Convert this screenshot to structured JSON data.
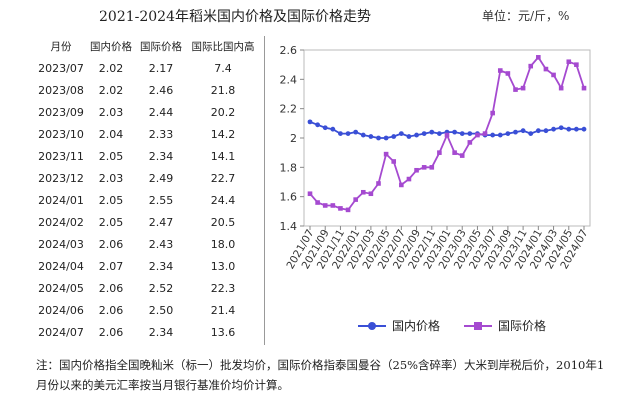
{
  "title": "2021-2024年稻米国内价格及国际价格走势",
  "unit": "单位：元/斤，%",
  "table": {
    "headers": [
      "月份",
      "国内价格",
      "国际价格",
      "国际比国内高"
    ],
    "rows": [
      [
        "2023/07",
        "2.02",
        "2.17",
        "7.4"
      ],
      [
        "2023/08",
        "2.02",
        "2.46",
        "21.8"
      ],
      [
        "2023/09",
        "2.03",
        "2.44",
        "20.2"
      ],
      [
        "2023/10",
        "2.04",
        "2.33",
        "14.2"
      ],
      [
        "2023/11",
        "2.05",
        "2.34",
        "14.1"
      ],
      [
        "2023/12",
        "2.03",
        "2.49",
        "22.7"
      ],
      [
        "2024/01",
        "2.05",
        "2.55",
        "24.4"
      ],
      [
        "2024/02",
        "2.05",
        "2.47",
        "20.5"
      ],
      [
        "2024/03",
        "2.06",
        "2.43",
        "18.0"
      ],
      [
        "2024/04",
        "2.07",
        "2.34",
        "13.0"
      ],
      [
        "2024/05",
        "2.06",
        "2.52",
        "22.3"
      ],
      [
        "2024/06",
        "2.06",
        "2.50",
        "21.4"
      ],
      [
        "2024/07",
        "2.06",
        "2.34",
        "13.6"
      ]
    ]
  },
  "chart_data": {
    "type": "line",
    "title": "",
    "xlabel": "",
    "ylabel": "",
    "ylim": [
      1.4,
      2.6
    ],
    "yticks": [
      "1.4",
      "1.6",
      "1.8",
      "2",
      "2.2",
      "2.4",
      "2.6"
    ],
    "xticks": [
      "2021/07",
      "2021/09",
      "2021/11",
      "2022/01",
      "2022/03",
      "2022/05",
      "2022/07",
      "2022/09",
      "2022/11",
      "2023/01",
      "2023/03",
      "2023/05",
      "2023/07",
      "2023/09",
      "2023/11",
      "2024/01",
      "2024/03",
      "2024/05",
      "2024/07"
    ],
    "grid": false,
    "legend": "bottom",
    "x": [
      "2021/07",
      "2021/08",
      "2021/09",
      "2021/10",
      "2021/11",
      "2021/12",
      "2022/01",
      "2022/02",
      "2022/03",
      "2022/04",
      "2022/05",
      "2022/06",
      "2022/07",
      "2022/08",
      "2022/09",
      "2022/10",
      "2022/11",
      "2022/12",
      "2023/01",
      "2023/02",
      "2023/03",
      "2023/04",
      "2023/05",
      "2023/06",
      "2023/07",
      "2023/08",
      "2023/09",
      "2023/10",
      "2023/11",
      "2023/12",
      "2024/01",
      "2024/02",
      "2024/03",
      "2024/04",
      "2024/05",
      "2024/06",
      "2024/07"
    ],
    "series": [
      {
        "name": "国内价格",
        "color": "#3a4fd6",
        "marker": "circle",
        "values": [
          2.11,
          2.09,
          2.07,
          2.06,
          2.03,
          2.03,
          2.04,
          2.02,
          2.01,
          2.0,
          2.0,
          2.01,
          2.03,
          2.01,
          2.02,
          2.03,
          2.04,
          2.03,
          2.04,
          2.04,
          2.03,
          2.03,
          2.03,
          2.02,
          2.02,
          2.02,
          2.03,
          2.04,
          2.05,
          2.03,
          2.05,
          2.05,
          2.06,
          2.07,
          2.06,
          2.06,
          2.06
        ]
      },
      {
        "name": "国际价格",
        "color": "#a54ad0",
        "marker": "square",
        "values": [
          1.62,
          1.56,
          1.54,
          1.54,
          1.52,
          1.51,
          1.58,
          1.63,
          1.62,
          1.69,
          1.89,
          1.84,
          1.68,
          1.72,
          1.78,
          1.8,
          1.8,
          1.9,
          2.02,
          1.9,
          1.88,
          1.97,
          2.02,
          2.03,
          2.17,
          2.46,
          2.44,
          2.33,
          2.34,
          2.49,
          2.55,
          2.47,
          2.43,
          2.34,
          2.52,
          2.5,
          2.34
        ]
      }
    ]
  },
  "note": "注：国内价格指全国晚籼米（标一）批发均价，国际价格指泰国曼谷（25%含碎率）大米到岸税后价，2010年1月份以来的美元汇率按当月银行基准价均价计算。"
}
